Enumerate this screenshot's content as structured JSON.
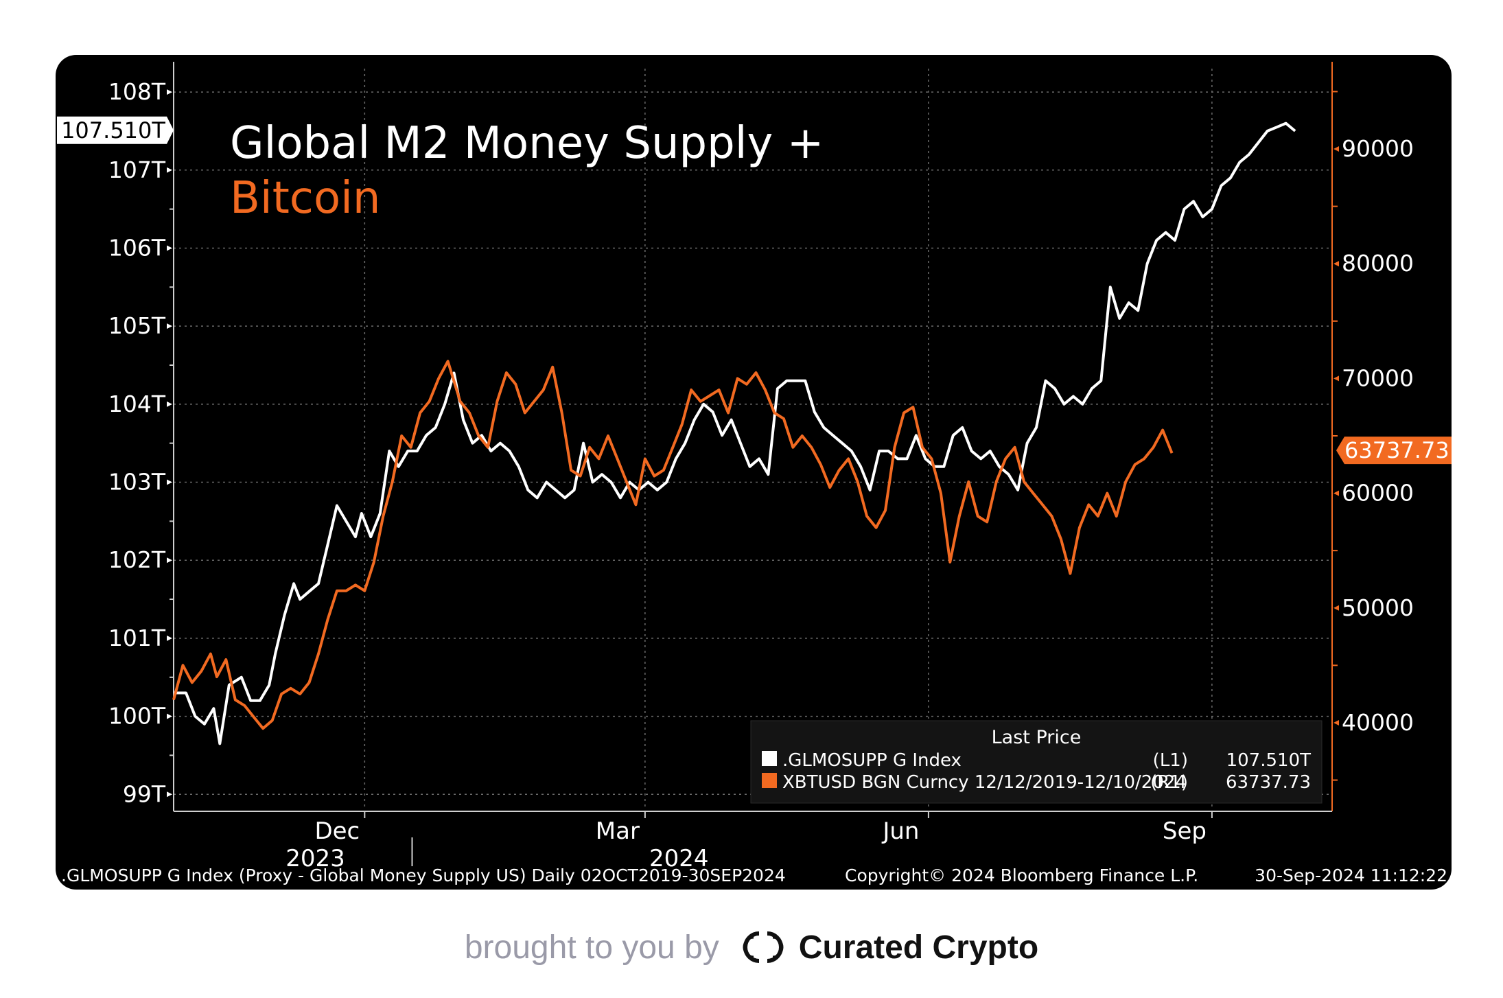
{
  "chart_data": {
    "type": "line",
    "title": "Global M2 Money Supply +",
    "title_second_line": "Bitcoin",
    "background": "#000000",
    "grid": true,
    "x_ticks": [
      {
        "label": "Dec",
        "date": "2023-12-01"
      },
      {
        "label": "Mar",
        "date": "2024-03-01"
      },
      {
        "label": "Jun",
        "date": "2024-06-01"
      },
      {
        "label": "Sep",
        "date": "2024-09-01"
      }
    ],
    "year_labels": [
      {
        "label": "2023",
        "date": "2023-11-15"
      },
      {
        "label": "2024",
        "date": "2024-03-12"
      }
    ],
    "year_divider_date": "2024-01-01",
    "x_range": [
      "2023-09-30",
      "2024-10-10"
    ],
    "left_axis": {
      "ylim": [
        98.8,
        108.3
      ],
      "ticks": [
        99,
        100,
        101,
        102,
        103,
        104,
        105,
        106,
        107,
        108
      ],
      "tick_labels": [
        "99T",
        "100T",
        "101T",
        "102T",
        "103T",
        "104T",
        "105T",
        "106T",
        "107T",
        "108T"
      ],
      "last_value_label": "107.510T",
      "last_value": 107.51,
      "color": "#ffffff"
    },
    "right_axis": {
      "ylim": [
        32400,
        97000
      ],
      "ticks": [
        40000,
        50000,
        60000,
        70000,
        80000,
        90000
      ],
      "tick_labels": [
        "40000",
        "50000",
        "60000",
        "70000",
        "80000",
        "90000"
      ],
      "last_value_label": "63737.73",
      "last_value": 63737.73,
      "color": "#f26a21"
    },
    "series": [
      {
        "name": ".GLMOSUPP G Index",
        "axis": "left",
        "color": "#ffffff",
        "points": [
          [
            "2023-09-30",
            100.3
          ],
          [
            "2023-10-04",
            100.3
          ],
          [
            "2023-10-07",
            100.0
          ],
          [
            "2023-10-10",
            99.9
          ],
          [
            "2023-10-13",
            100.1
          ],
          [
            "2023-10-15",
            99.65
          ],
          [
            "2023-10-18",
            100.4
          ],
          [
            "2023-10-22",
            100.5
          ],
          [
            "2023-10-25",
            100.2
          ],
          [
            "2023-10-28",
            100.2
          ],
          [
            "2023-10-31",
            100.4
          ],
          [
            "2023-11-02",
            100.8
          ],
          [
            "2023-11-05",
            101.3
          ],
          [
            "2023-11-08",
            101.7
          ],
          [
            "2023-11-10",
            101.5
          ],
          [
            "2023-11-13",
            101.6
          ],
          [
            "2023-11-16",
            101.7
          ],
          [
            "2023-11-19",
            102.2
          ],
          [
            "2023-11-22",
            102.7
          ],
          [
            "2023-11-25",
            102.5
          ],
          [
            "2023-11-28",
            102.3
          ],
          [
            "2023-11-30",
            102.6
          ],
          [
            "2023-12-03",
            102.3
          ],
          [
            "2023-12-06",
            102.6
          ],
          [
            "2023-12-09",
            103.4
          ],
          [
            "2023-12-12",
            103.2
          ],
          [
            "2023-12-15",
            103.4
          ],
          [
            "2023-12-18",
            103.4
          ],
          [
            "2023-12-21",
            103.6
          ],
          [
            "2023-12-24",
            103.7
          ],
          [
            "2023-12-27",
            104.0
          ],
          [
            "2023-12-30",
            104.4
          ],
          [
            "2024-01-02",
            103.8
          ],
          [
            "2024-01-05",
            103.5
          ],
          [
            "2024-01-08",
            103.6
          ],
          [
            "2024-01-11",
            103.4
          ],
          [
            "2024-01-14",
            103.5
          ],
          [
            "2024-01-17",
            103.4
          ],
          [
            "2024-01-20",
            103.2
          ],
          [
            "2024-01-23",
            102.9
          ],
          [
            "2024-01-26",
            102.8
          ],
          [
            "2024-01-29",
            103.0
          ],
          [
            "2024-02-01",
            102.9
          ],
          [
            "2024-02-04",
            102.8
          ],
          [
            "2024-02-07",
            102.9
          ],
          [
            "2024-02-10",
            103.5
          ],
          [
            "2024-02-13",
            103.0
          ],
          [
            "2024-02-16",
            103.1
          ],
          [
            "2024-02-19",
            103.0
          ],
          [
            "2024-02-22",
            102.8
          ],
          [
            "2024-02-25",
            103.0
          ],
          [
            "2024-02-28",
            102.9
          ],
          [
            "2024-03-02",
            103.0
          ],
          [
            "2024-03-05",
            102.9
          ],
          [
            "2024-03-08",
            103.0
          ],
          [
            "2024-03-11",
            103.3
          ],
          [
            "2024-03-14",
            103.5
          ],
          [
            "2024-03-17",
            103.8
          ],
          [
            "2024-03-20",
            104.0
          ],
          [
            "2024-03-23",
            103.9
          ],
          [
            "2024-03-26",
            103.6
          ],
          [
            "2024-03-29",
            103.8
          ],
          [
            "2024-04-01",
            103.5
          ],
          [
            "2024-04-04",
            103.2
          ],
          [
            "2024-04-07",
            103.3
          ],
          [
            "2024-04-10",
            103.1
          ],
          [
            "2024-04-13",
            104.2
          ],
          [
            "2024-04-16",
            104.3
          ],
          [
            "2024-04-19",
            104.3
          ],
          [
            "2024-04-22",
            104.3
          ],
          [
            "2024-04-25",
            103.9
          ],
          [
            "2024-04-28",
            103.7
          ],
          [
            "2024-05-01",
            103.6
          ],
          [
            "2024-05-04",
            103.5
          ],
          [
            "2024-05-07",
            103.4
          ],
          [
            "2024-05-10",
            103.2
          ],
          [
            "2024-05-13",
            102.9
          ],
          [
            "2024-05-16",
            103.4
          ],
          [
            "2024-05-19",
            103.4
          ],
          [
            "2024-05-22",
            103.3
          ],
          [
            "2024-05-25",
            103.3
          ],
          [
            "2024-05-28",
            103.6
          ],
          [
            "2024-05-31",
            103.3
          ],
          [
            "2024-06-03",
            103.2
          ],
          [
            "2024-06-06",
            103.2
          ],
          [
            "2024-06-09",
            103.6
          ],
          [
            "2024-06-12",
            103.7
          ],
          [
            "2024-06-15",
            103.4
          ],
          [
            "2024-06-18",
            103.3
          ],
          [
            "2024-06-21",
            103.4
          ],
          [
            "2024-06-24",
            103.2
          ],
          [
            "2024-06-27",
            103.1
          ],
          [
            "2024-06-30",
            102.9
          ],
          [
            "2024-07-03",
            103.5
          ],
          [
            "2024-07-06",
            103.7
          ],
          [
            "2024-07-09",
            104.3
          ],
          [
            "2024-07-12",
            104.2
          ],
          [
            "2024-07-15",
            104.0
          ],
          [
            "2024-07-18",
            104.1
          ],
          [
            "2024-07-21",
            104.0
          ],
          [
            "2024-07-24",
            104.2
          ],
          [
            "2024-07-27",
            104.3
          ],
          [
            "2024-07-30",
            105.5
          ],
          [
            "2024-08-02",
            105.1
          ],
          [
            "2024-08-05",
            105.3
          ],
          [
            "2024-08-08",
            105.2
          ],
          [
            "2024-08-11",
            105.8
          ],
          [
            "2024-08-14",
            106.1
          ],
          [
            "2024-08-17",
            106.2
          ],
          [
            "2024-08-20",
            106.1
          ],
          [
            "2024-08-23",
            106.5
          ],
          [
            "2024-08-26",
            106.6
          ],
          [
            "2024-08-29",
            106.4
          ],
          [
            "2024-09-01",
            106.5
          ],
          [
            "2024-09-04",
            106.8
          ],
          [
            "2024-09-07",
            106.9
          ],
          [
            "2024-09-10",
            107.1
          ],
          [
            "2024-09-13",
            107.2
          ],
          [
            "2024-09-16",
            107.35
          ],
          [
            "2024-09-19",
            107.5
          ],
          [
            "2024-09-22",
            107.55
          ],
          [
            "2024-09-25",
            107.6
          ],
          [
            "2024-09-28",
            107.5
          ]
        ]
      },
      {
        "name": "XBTUSD BGN Curncy 12/12/2019-12/10/2024",
        "axis": "right",
        "color": "#f26a21",
        "points": [
          [
            "2023-09-30",
            42000
          ],
          [
            "2023-10-03",
            45000
          ],
          [
            "2023-10-06",
            43500
          ],
          [
            "2023-10-09",
            44500
          ],
          [
            "2023-10-12",
            46000
          ],
          [
            "2023-10-14",
            44000
          ],
          [
            "2023-10-17",
            45500
          ],
          [
            "2023-10-20",
            42000
          ],
          [
            "2023-10-23",
            41500
          ],
          [
            "2023-10-26",
            40500
          ],
          [
            "2023-10-29",
            39500
          ],
          [
            "2023-11-01",
            40200
          ],
          [
            "2023-11-04",
            42500
          ],
          [
            "2023-11-07",
            43000
          ],
          [
            "2023-11-10",
            42500
          ],
          [
            "2023-11-13",
            43500
          ],
          [
            "2023-11-16",
            46000
          ],
          [
            "2023-11-19",
            49000
          ],
          [
            "2023-11-22",
            51500
          ],
          [
            "2023-11-25",
            51500
          ],
          [
            "2023-11-28",
            52000
          ],
          [
            "2023-12-01",
            51500
          ],
          [
            "2023-12-04",
            54000
          ],
          [
            "2023-12-07",
            58000
          ],
          [
            "2023-12-10",
            61000
          ],
          [
            "2023-12-13",
            65000
          ],
          [
            "2023-12-16",
            64000
          ],
          [
            "2023-12-19",
            67000
          ],
          [
            "2023-12-22",
            68000
          ],
          [
            "2023-12-25",
            70000
          ],
          [
            "2023-12-28",
            71500
          ],
          [
            "2024-01-01",
            68000
          ],
          [
            "2024-01-04",
            67000
          ],
          [
            "2024-01-07",
            65000
          ],
          [
            "2024-01-10",
            64000
          ],
          [
            "2024-01-13",
            68000
          ],
          [
            "2024-01-16",
            70500
          ],
          [
            "2024-01-19",
            69500
          ],
          [
            "2024-01-22",
            67000
          ],
          [
            "2024-01-25",
            68000
          ],
          [
            "2024-01-28",
            69000
          ],
          [
            "2024-01-31",
            71000
          ],
          [
            "2024-02-03",
            67000
          ],
          [
            "2024-02-06",
            62000
          ],
          [
            "2024-02-09",
            61500
          ],
          [
            "2024-02-12",
            64000
          ],
          [
            "2024-02-15",
            63000
          ],
          [
            "2024-02-18",
            65000
          ],
          [
            "2024-02-21",
            63000
          ],
          [
            "2024-02-24",
            61000
          ],
          [
            "2024-02-27",
            59000
          ],
          [
            "2024-03-01",
            63000
          ],
          [
            "2024-03-04",
            61500
          ],
          [
            "2024-03-07",
            62000
          ],
          [
            "2024-03-10",
            64000
          ],
          [
            "2024-03-13",
            66000
          ],
          [
            "2024-03-16",
            69000
          ],
          [
            "2024-03-19",
            68000
          ],
          [
            "2024-03-22",
            68500
          ],
          [
            "2024-03-25",
            69000
          ],
          [
            "2024-03-28",
            67000
          ],
          [
            "2024-03-31",
            70000
          ],
          [
            "2024-04-03",
            69500
          ],
          [
            "2024-04-06",
            70500
          ],
          [
            "2024-04-09",
            69000
          ],
          [
            "2024-04-12",
            67000
          ],
          [
            "2024-04-15",
            66500
          ],
          [
            "2024-04-18",
            64000
          ],
          [
            "2024-04-21",
            65000
          ],
          [
            "2024-04-24",
            64000
          ],
          [
            "2024-04-27",
            62500
          ],
          [
            "2024-04-30",
            60500
          ],
          [
            "2024-05-03",
            62000
          ],
          [
            "2024-05-06",
            63000
          ],
          [
            "2024-05-09",
            61000
          ],
          [
            "2024-05-12",
            58000
          ],
          [
            "2024-05-15",
            57000
          ],
          [
            "2024-05-18",
            58500
          ],
          [
            "2024-05-21",
            64000
          ],
          [
            "2024-05-24",
            67000
          ],
          [
            "2024-05-27",
            67500
          ],
          [
            "2024-05-30",
            64000
          ],
          [
            "2024-06-02",
            63000
          ],
          [
            "2024-06-05",
            60000
          ],
          [
            "2024-06-08",
            54000
          ],
          [
            "2024-06-11",
            58000
          ],
          [
            "2024-06-14",
            61000
          ],
          [
            "2024-06-17",
            58000
          ],
          [
            "2024-06-20",
            57500
          ],
          [
            "2024-06-23",
            61000
          ],
          [
            "2024-06-26",
            63000
          ],
          [
            "2024-06-29",
            64000
          ],
          [
            "2024-07-02",
            61000
          ],
          [
            "2024-07-05",
            60000
          ],
          [
            "2024-07-08",
            59000
          ],
          [
            "2024-07-11",
            58000
          ],
          [
            "2024-07-14",
            56000
          ],
          [
            "2024-07-17",
            53000
          ],
          [
            "2024-07-20",
            57000
          ],
          [
            "2024-07-23",
            59000
          ],
          [
            "2024-07-26",
            58000
          ],
          [
            "2024-07-29",
            60000
          ],
          [
            "2024-08-01",
            58000
          ],
          [
            "2024-08-04",
            61000
          ],
          [
            "2024-08-07",
            62500
          ],
          [
            "2024-08-10",
            63000
          ],
          [
            "2024-08-13",
            64000
          ],
          [
            "2024-08-16",
            65500
          ],
          [
            "2024-08-19",
            63500
          ]
        ]
      }
    ],
    "legend": {
      "placement": "bottom-right",
      "header": "Last Price",
      "entries": [
        {
          "marker_color": "#ffffff",
          "name": ".GLMOSUPP G Index",
          "axis": "(L1)",
          "value": "107.510T"
        },
        {
          "marker_color": "#f26a21",
          "name": "XBTUSD BGN Curncy 12/12/2019-12/10/2024",
          "axis": "(R1)",
          "value": "63737.73"
        }
      ]
    },
    "footer": {
      "source": ".GLMOSUPP G Index (Proxy - Global Money Supply US)  Daily 02OCT2019-30SEP2024",
      "copyright": "Copyright© 2024 Bloomberg Finance L.P.",
      "timestamp": "30-Sep-2024 11:12:22"
    }
  },
  "credit": {
    "text": "brought to you by",
    "brand": "Curated Crypto",
    "logo_icon": "curated-crypto-logo-icon"
  }
}
